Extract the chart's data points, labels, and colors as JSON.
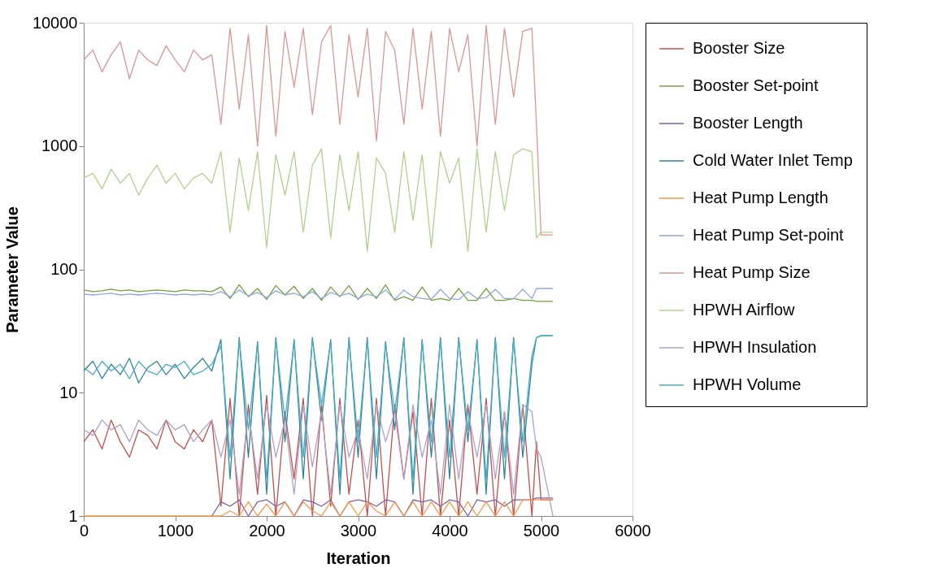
{
  "chart_data": {
    "type": "line",
    "xlabel": "Iteration",
    "ylabel": "Parameter Value",
    "log": "y",
    "grid": false,
    "legend": "right",
    "marker": "none",
    "line_style": "solid",
    "xlim": [
      0,
      6000
    ],
    "xticks": [
      0,
      1000,
      2000,
      3000,
      4000,
      5000,
      6000
    ],
    "ylim": [
      1,
      10000
    ],
    "yticks": [
      1,
      10,
      100,
      1000,
      10000
    ],
    "x": [
      0,
      100,
      200,
      300,
      400,
      500,
      600,
      700,
      800,
      900,
      1000,
      1100,
      1200,
      1300,
      1400,
      1500,
      1600,
      1700,
      1800,
      1900,
      2000,
      2100,
      2200,
      2300,
      2400,
      2500,
      2600,
      2700,
      2800,
      2900,
      3000,
      3100,
      3200,
      3300,
      3400,
      3500,
      3600,
      3700,
      3800,
      3900,
      4000,
      4100,
      4200,
      4300,
      4400,
      4500,
      4600,
      4700,
      4800,
      4900,
      4950,
      5000,
      5130
    ],
    "series": [
      {
        "name": "Booster Size",
        "color": "#c0504d",
        "values": [
          4,
          5,
          3.5,
          6,
          4,
          3,
          5,
          4.5,
          3.5,
          6,
          4,
          3.5,
          5,
          4,
          6,
          1.2,
          9,
          1,
          8,
          1.5,
          9.5,
          1,
          7,
          2,
          9,
          1,
          8,
          1.2,
          9,
          1.5,
          6,
          1,
          9,
          1,
          8,
          2,
          7,
          1,
          9,
          1,
          6,
          1,
          8,
          1.5,
          9,
          1,
          7,
          1,
          8,
          1,
          4,
          1.35,
          1.35
        ]
      },
      {
        "name": "Booster Set-point",
        "color": "#77a03c",
        "values": [
          68,
          66,
          67,
          69,
          67,
          68,
          66,
          67,
          68,
          67,
          66,
          68,
          67,
          67,
          66,
          72,
          58,
          75,
          60,
          70,
          57,
          74,
          62,
          73,
          58,
          70,
          56,
          72,
          60,
          74,
          57,
          70,
          58,
          75,
          56,
          60,
          56,
          72,
          56,
          58,
          56,
          70,
          56,
          56,
          70,
          56,
          56,
          58,
          56,
          56,
          55,
          55,
          55
        ]
      },
      {
        "name": "Booster Length",
        "color": "#7f5fa0",
        "values": [
          null,
          null,
          null,
          null,
          null,
          null,
          null,
          null,
          null,
          null,
          null,
          null,
          null,
          null,
          1,
          1.3,
          1.2,
          1.35,
          1,
          1.3,
          1.35,
          1.2,
          1.3,
          1,
          1.35,
          1.3,
          1.2,
          1.35,
          1,
          1.3,
          1.35,
          1.3,
          1.2,
          1.35,
          1.3,
          1,
          1.35,
          1.3,
          1.35,
          1.2,
          1.35,
          1.3,
          1,
          1.35,
          1.3,
          1.35,
          1.2,
          1.35,
          1.35,
          1.35,
          1.4,
          1.4,
          1.4
        ]
      },
      {
        "name": "Cold Water Inlet Temp",
        "color": "#31859c",
        "values": [
          15,
          18,
          13,
          17,
          14,
          19,
          12,
          16,
          18,
          14,
          17,
          13,
          16,
          19,
          15,
          27,
          2,
          28,
          3,
          26,
          1.5,
          28,
          4,
          27,
          2,
          28,
          6,
          27,
          1.5,
          28,
          3,
          28,
          2,
          26,
          5,
          28,
          1.5,
          27,
          3,
          28,
          2,
          28,
          4,
          27,
          1.5,
          28,
          2,
          28,
          3,
          17,
          28,
          29,
          29
        ]
      },
      {
        "name": "Heat Pump Length",
        "color": "#f79646",
        "values": [
          1,
          1,
          1,
          1,
          1,
          1,
          1,
          1,
          1,
          1,
          1,
          1,
          1,
          1,
          1,
          1,
          1.1,
          1,
          1.3,
          1,
          1.25,
          1,
          1.3,
          1,
          1.3,
          1.1,
          1,
          1.3,
          1,
          1.3,
          1,
          1.3,
          1.1,
          1,
          1.3,
          1,
          1.3,
          1,
          1.3,
          1,
          1.3,
          1,
          1.3,
          1,
          1.3,
          1,
          1.3,
          1,
          1.35,
          1.35,
          1.35,
          1.35,
          1.35
        ]
      },
      {
        "name": "Heat Pump Set-point",
        "color": "#8ea9db",
        "values": [
          63,
          62,
          63,
          64,
          62,
          63,
          62,
          63,
          64,
          63,
          62,
          63,
          62,
          63,
          62,
          66,
          60,
          68,
          61,
          65,
          59,
          67,
          62,
          64,
          60,
          66,
          58,
          65,
          61,
          64,
          58,
          63,
          60,
          68,
          57,
          68,
          60,
          58,
          57,
          69,
          58,
          57,
          66,
          58,
          59,
          69,
          58,
          58,
          69,
          58,
          70,
          70,
          70
        ]
      },
      {
        "name": "Heat Pump Size",
        "color": "#d99694",
        "values": [
          5000,
          6000,
          4000,
          5500,
          7000,
          3500,
          6000,
          5000,
          4500,
          6500,
          5000,
          4000,
          6000,
          5000,
          5500,
          1500,
          9000,
          2000,
          8000,
          1000,
          9500,
          1200,
          8500,
          3000,
          9000,
          1800,
          7000,
          9500,
          1500,
          8000,
          2500,
          9000,
          1100,
          8500,
          6000,
          1500,
          9000,
          2000,
          8500,
          1200,
          9000,
          4000,
          8000,
          1000,
          9500,
          1500,
          9000,
          2500,
          8500,
          9000,
          1500,
          190,
          190
        ]
      },
      {
        "name": "HPWH Airflow",
        "color": "#b3cf8e",
        "values": [
          550,
          600,
          450,
          650,
          500,
          600,
          400,
          550,
          700,
          500,
          600,
          450,
          550,
          600,
          500,
          900,
          200,
          800,
          300,
          900,
          150,
          850,
          400,
          900,
          200,
          700,
          950,
          180,
          850,
          300,
          900,
          140,
          800,
          600,
          200,
          900,
          250,
          850,
          150,
          900,
          500,
          800,
          140,
          950,
          200,
          900,
          300,
          850,
          950,
          900,
          180,
          200,
          200
        ]
      },
      {
        "name": "HPWH Insulation",
        "color": "#b2a1c7",
        "values": [
          5,
          4.5,
          6,
          5,
          5.5,
          4,
          6,
          5,
          4.5,
          6,
          5,
          5.5,
          4,
          5,
          6,
          3,
          6,
          1.5,
          7,
          2,
          8,
          3,
          6,
          1.5,
          8,
          2.5,
          7,
          1.5,
          8,
          3,
          5,
          2,
          8,
          4,
          7,
          2,
          8,
          3,
          6,
          1.5,
          8,
          2,
          7,
          3,
          8,
          2,
          7,
          1.5,
          8,
          7,
          3.5,
          3,
          1
        ]
      },
      {
        "name": "HPWH Volume",
        "color": "#4bacc6",
        "values": [
          16,
          14,
          18,
          15,
          17,
          13,
          18,
          15,
          14,
          17,
          16,
          18,
          14,
          15,
          17,
          24,
          3,
          27,
          5,
          25,
          2,
          27,
          6,
          26,
          3,
          27,
          8,
          26,
          2,
          27,
          4,
          27,
          3,
          25,
          7,
          27,
          2,
          26,
          4,
          27,
          3,
          27,
          5,
          26,
          2,
          27,
          3,
          27,
          4,
          20,
          28,
          29,
          29
        ]
      }
    ]
  }
}
